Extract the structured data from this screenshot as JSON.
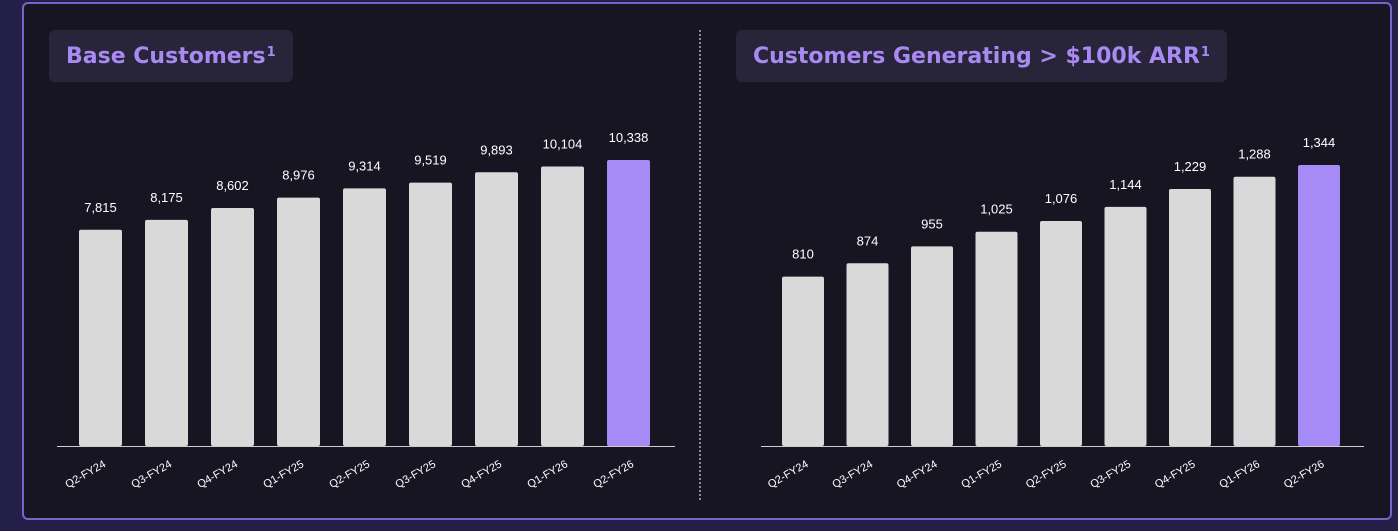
{
  "chart_data": [
    {
      "type": "bar",
      "title": "Base Customers",
      "title_footnote": "1",
      "categories": [
        "Q2-FY24",
        "Q3-FY24",
        "Q4-FY24",
        "Q1-FY25",
        "Q2-FY25",
        "Q3-FY25",
        "Q4-FY25",
        "Q1-FY26",
        "Q2-FY26"
      ],
      "values": [
        7815,
        8175,
        8602,
        8976,
        9314,
        9519,
        9893,
        10104,
        10338
      ],
      "value_labels": [
        "7,815",
        "8,175",
        "8,602",
        "8,976",
        "9,314",
        "9,519",
        "9,893",
        "10,104",
        "10,338"
      ],
      "highlight_index": 8,
      "ylim": [
        0,
        12000
      ],
      "xlabel": "",
      "ylabel": ""
    },
    {
      "type": "bar",
      "title": "Customers Generating > $100k ARR",
      "title_footnote": "1",
      "categories": [
        "Q2-FY24",
        "Q3-FY24",
        "Q4-FY24",
        "Q1-FY25",
        "Q2-FY25",
        "Q3-FY25",
        "Q4-FY25",
        "Q1-FY26",
        "Q2-FY26"
      ],
      "values": [
        810,
        874,
        955,
        1025,
        1076,
        1144,
        1229,
        1288,
        1344
      ],
      "value_labels": [
        "810",
        "874",
        "955",
        "1,025",
        "1,076",
        "1,144",
        "1,229",
        "1,288",
        "1,344"
      ],
      "highlight_index": 8,
      "ylim": [
        0,
        1600
      ],
      "xlabel": "",
      "ylabel": ""
    }
  ],
  "colors": {
    "background": "#231f49",
    "panel": "#181522",
    "panel_border": "#7b62c9",
    "title_box": "#28253a",
    "title_text": "#a88af2",
    "bar": "#d9d9d9",
    "bar_highlight": "#a68af5",
    "axis": "#cfcfcf",
    "label": "#ffffff"
  }
}
